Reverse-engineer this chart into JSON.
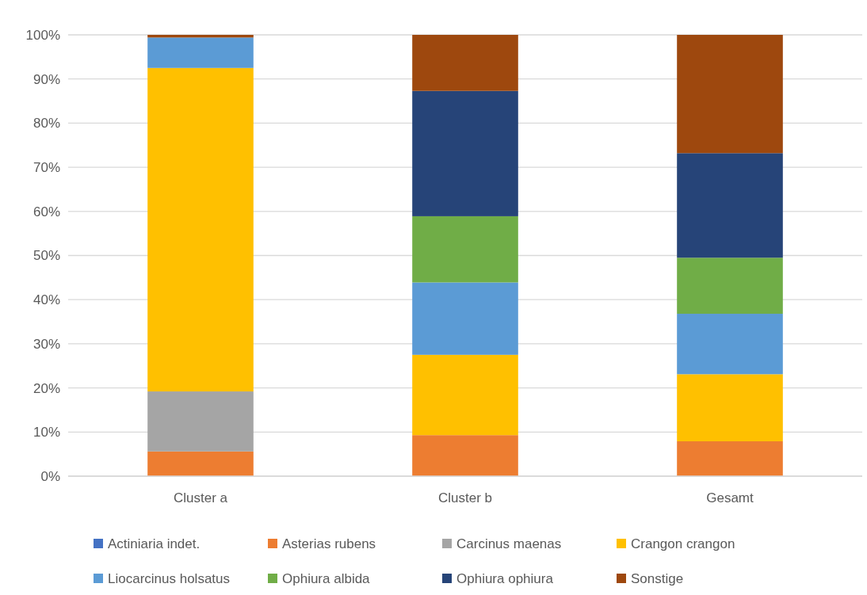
{
  "chart_data": {
    "type": "bar",
    "stacked": true,
    "categories": [
      "Cluster a",
      "Cluster b",
      "Gesamt"
    ],
    "series": [
      {
        "name": "Actiniaria indet.",
        "color": "#4472c4",
        "values": [
          0,
          0,
          0
        ]
      },
      {
        "name": "Asterias rubens",
        "color": "#ed7d31",
        "values": [
          5.6,
          9.3,
          7.9
        ]
      },
      {
        "name": "Carcinus maenas",
        "color": "#a5a5a5",
        "values": [
          13.6,
          0,
          0
        ]
      },
      {
        "name": "Crangon crangon",
        "color": "#ffc000",
        "values": [
          73.3,
          18.2,
          15.2
        ]
      },
      {
        "name": "Liocarcinus holsatus",
        "color": "#5b9bd5",
        "values": [
          6.9,
          16.4,
          13.7
        ]
      },
      {
        "name": "Ophiura albida",
        "color": "#70ad47",
        "values": [
          0,
          15.0,
          12.7
        ]
      },
      {
        "name": "Ophiura ophiura",
        "color": "#264478",
        "values": [
          0,
          28.4,
          23.7
        ]
      },
      {
        "name": "Sonstige",
        "color": "#9e480e",
        "values": [
          0.6,
          12.7,
          26.8
        ]
      }
    ],
    "ylim": [
      0,
      100
    ],
    "yticks": [
      {
        "value": 0,
        "label": "0%"
      },
      {
        "value": 10,
        "label": "10%"
      },
      {
        "value": 20,
        "label": "20%"
      },
      {
        "value": 30,
        "label": "30%"
      },
      {
        "value": 40,
        "label": "40%"
      },
      {
        "value": 50,
        "label": "50%"
      },
      {
        "value": 60,
        "label": "60%"
      },
      {
        "value": 70,
        "label": "70%"
      },
      {
        "value": 80,
        "label": "80%"
      },
      {
        "value": 90,
        "label": "90%"
      },
      {
        "value": 100,
        "label": "100%"
      }
    ],
    "grid": "y",
    "legend": "bottom"
  }
}
